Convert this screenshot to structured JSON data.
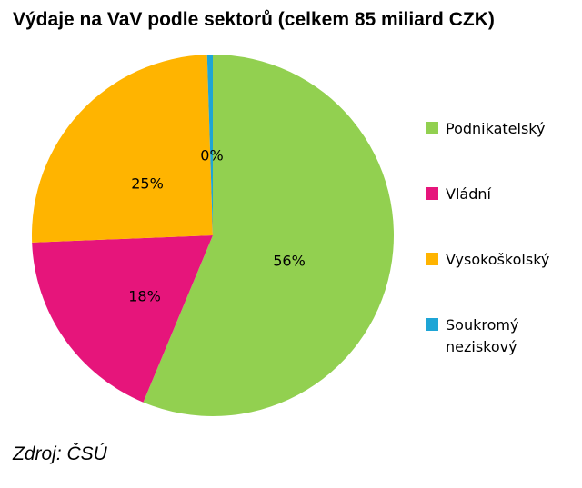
{
  "chart_data": {
    "type": "pie",
    "title": "Výdaje na VaV podle sektorů (celkem 85 miliard CZK)",
    "slices": [
      {
        "name": "Podnikatelský",
        "value": 56,
        "label": "56%",
        "color": "#92d050"
      },
      {
        "name": "Vládní",
        "value": 18,
        "label": "18%",
        "color": "#e6157b"
      },
      {
        "name": "Vysokoškolský",
        "value": 25,
        "label": "25%",
        "color": "#ffb400"
      },
      {
        "name": "Soukromý neziskový",
        "value": 0.5,
        "label": "0%",
        "color": "#1ea5d6"
      }
    ],
    "legend_position": "right",
    "source": "Zdroj: ČSÚ"
  }
}
